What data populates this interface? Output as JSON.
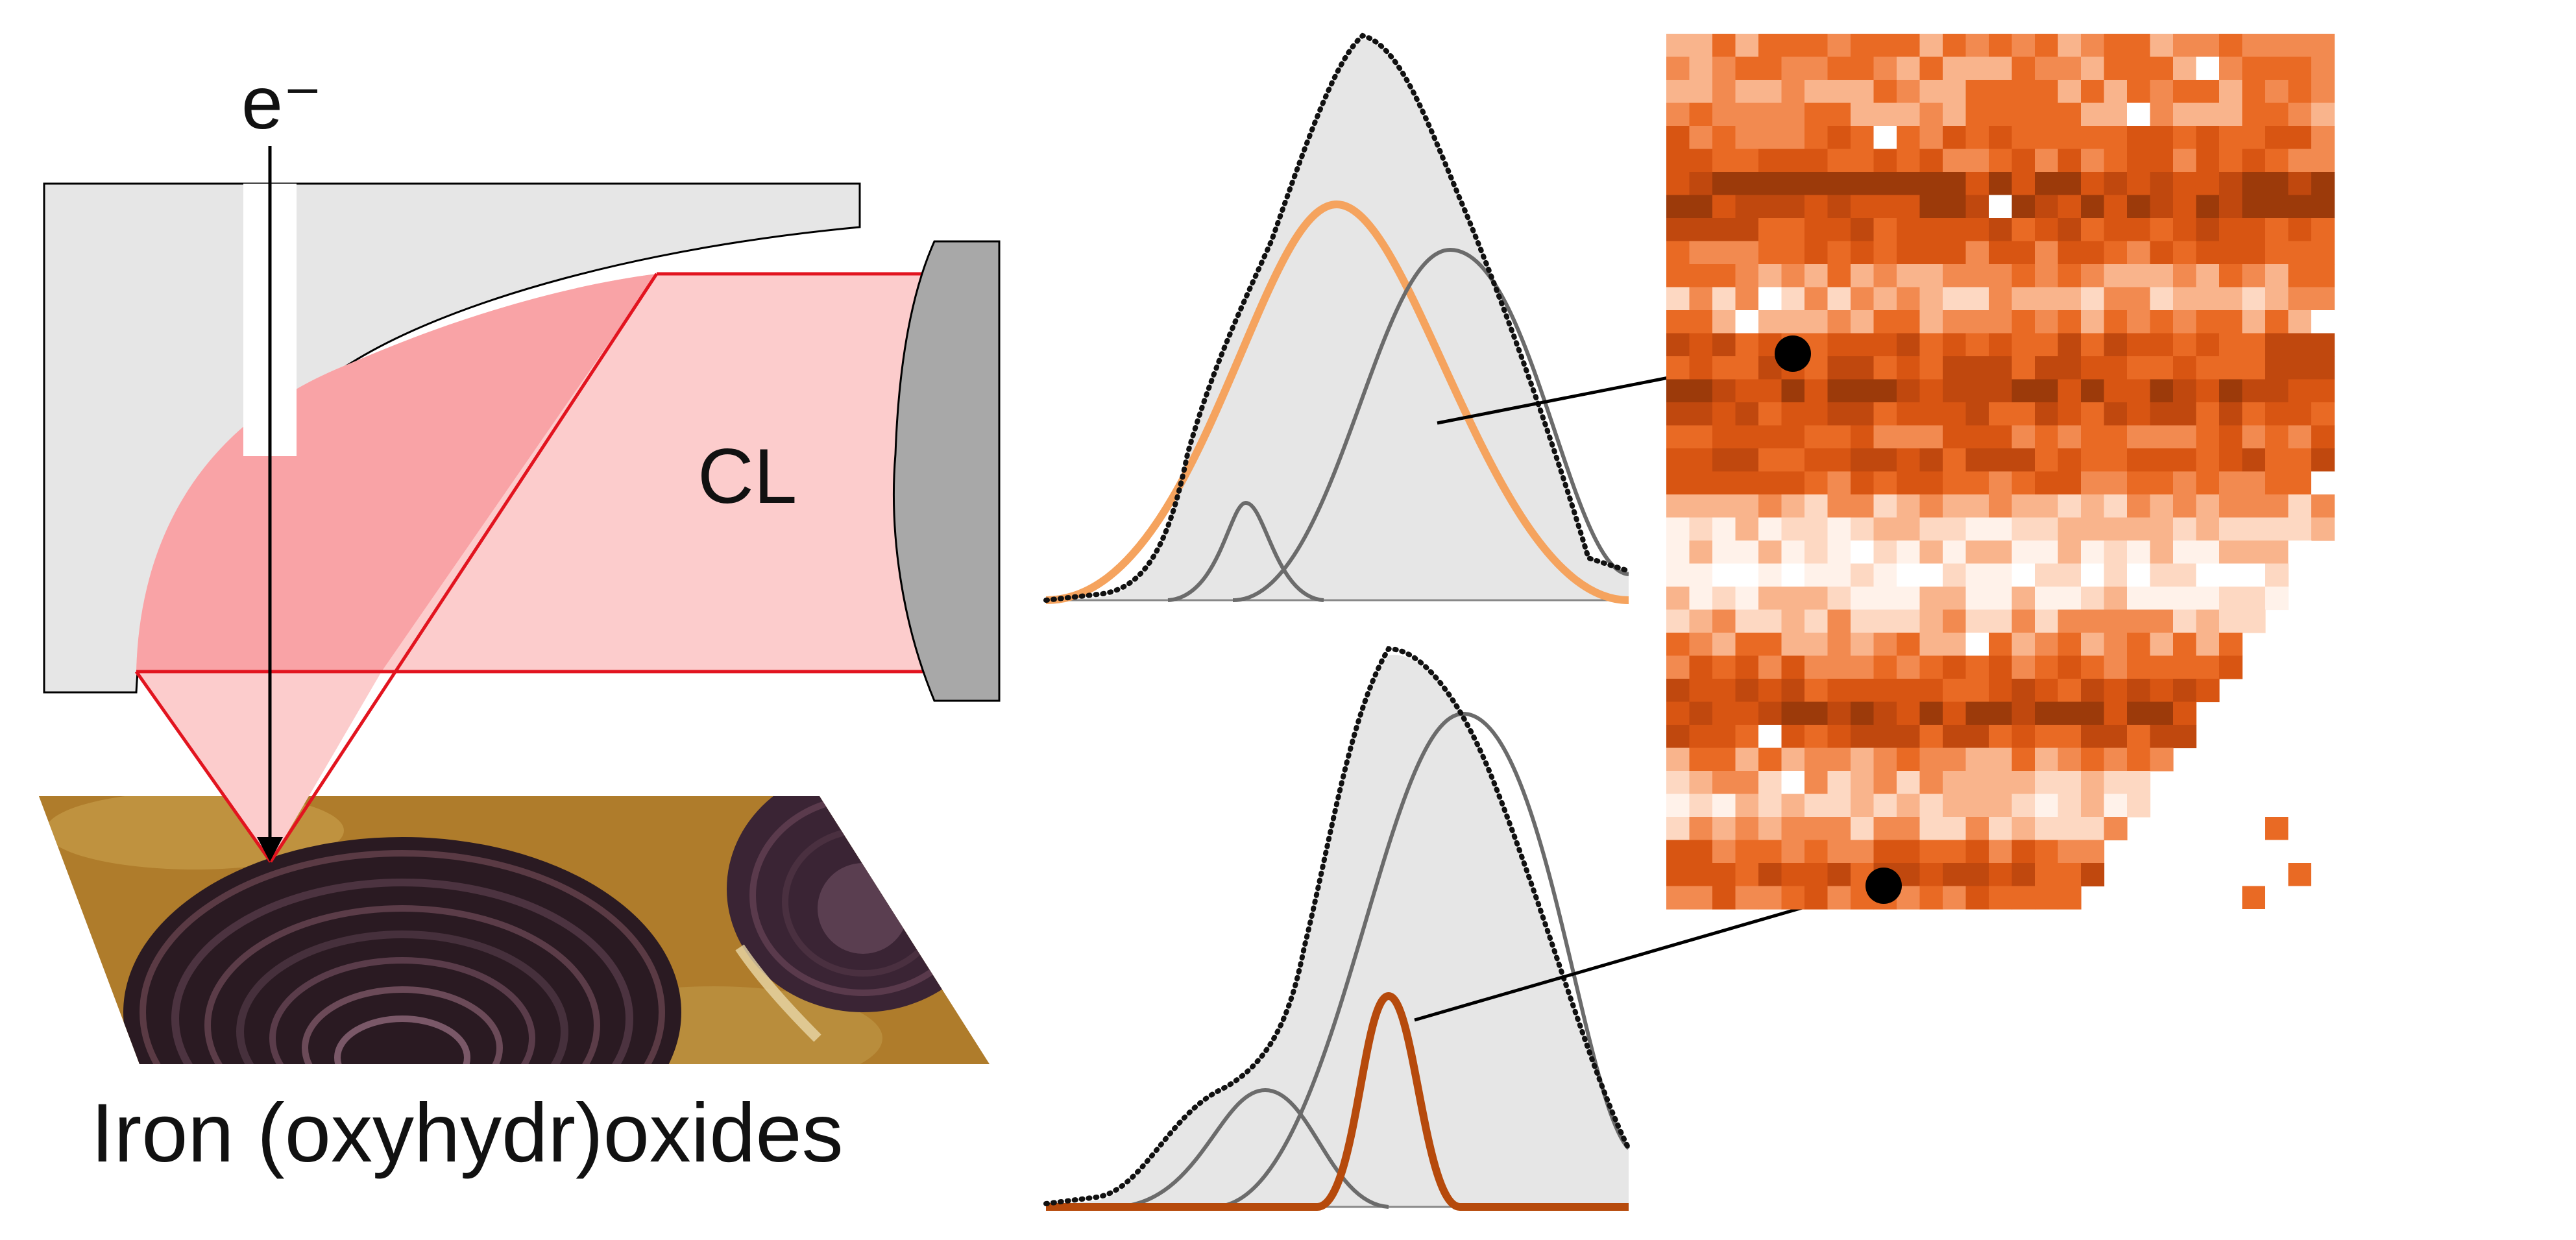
{
  "labels": {
    "electron": "e⁻",
    "cl": "CL",
    "caption": "Iron (oxyhydr)oxides"
  },
  "colors": {
    "mirror_body": "#e6e6e6",
    "detector": "#a8a8a8",
    "light_cone": "#f9a3a6",
    "light_beam": "#fccccc",
    "beam_outline": "#e2141f",
    "spectrum_fill": "#e6e6e6",
    "component_grey": "#6b6b6b",
    "component_light_orange": "#f5a35e",
    "component_dark_orange": "#b64a0c",
    "map_palette": [
      "#fff2ea",
      "#fdd8c2",
      "#f9b48c",
      "#f28a50",
      "#e96a24",
      "#d85512",
      "#c0480e",
      "#9c3a0a",
      "#6e2806"
    ]
  },
  "map": {
    "columns": 29,
    "rows": 38
  }
}
